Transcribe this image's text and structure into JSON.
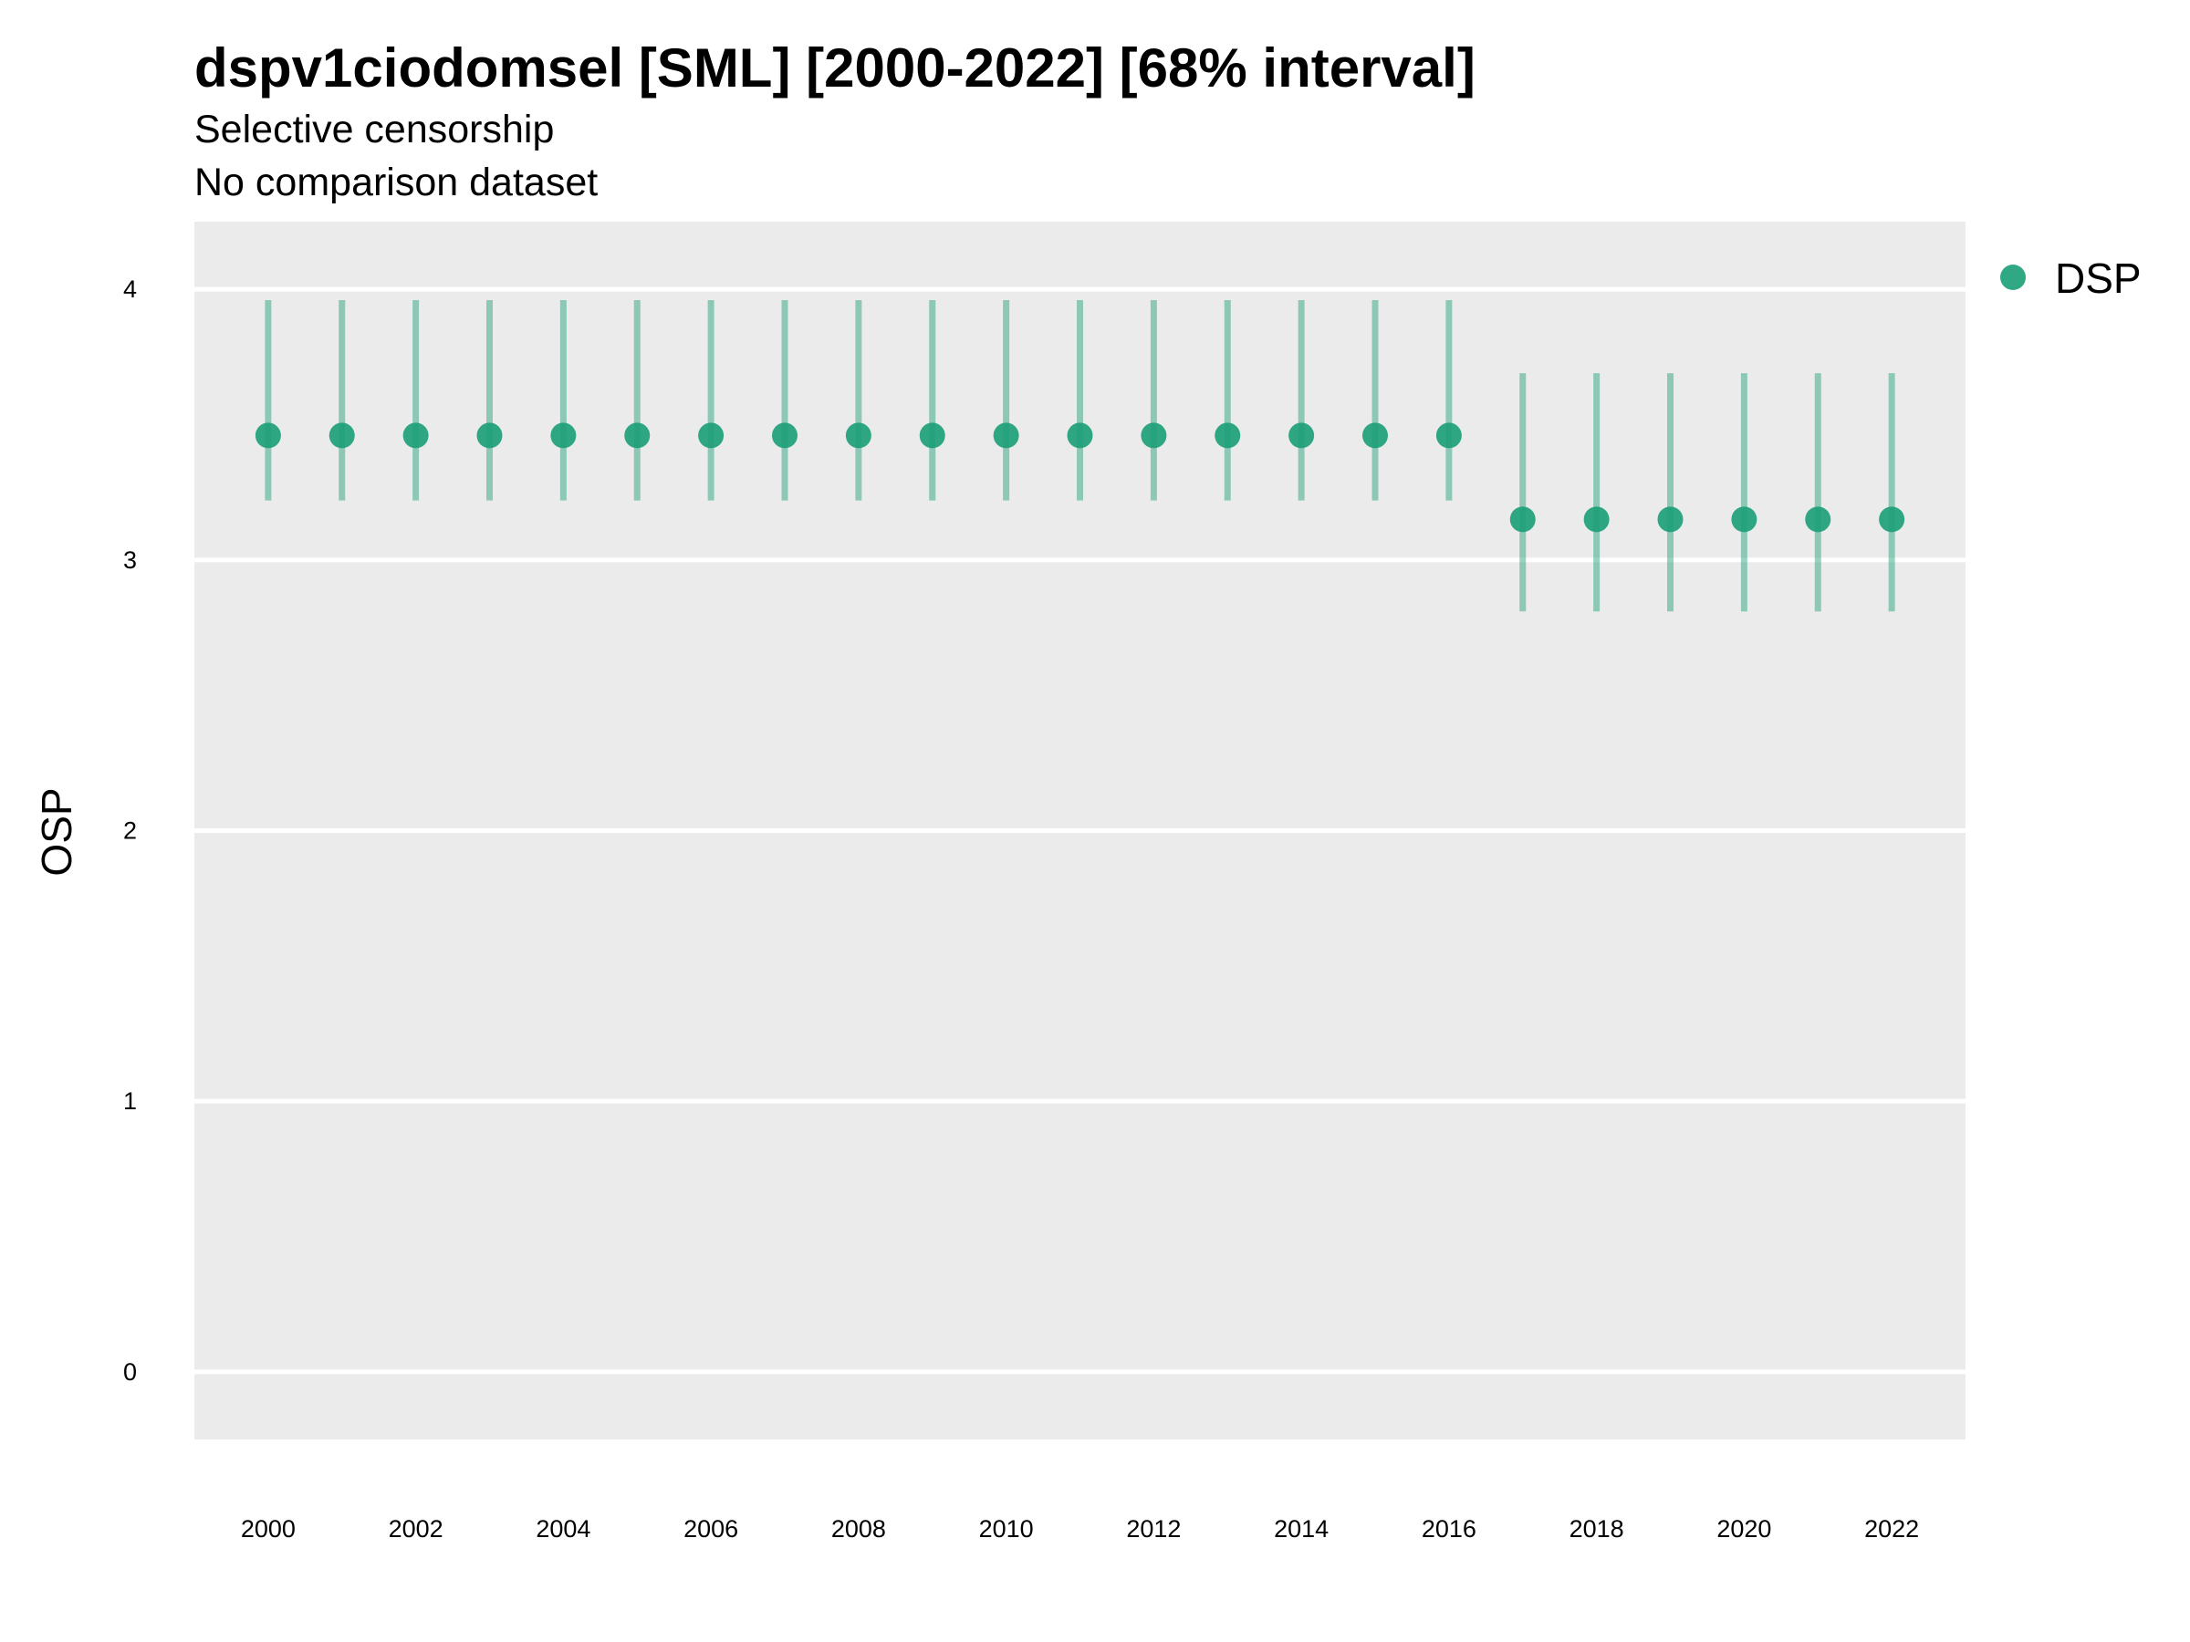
{
  "chart_data": {
    "type": "scatter",
    "title": "dspv1ciodomsel [SML] [2000-2022] [68% interval]",
    "subtitles": [
      "Selective censorship",
      "No comparison dataset"
    ],
    "xlabel": "",
    "ylabel": "OSP",
    "xlim": [
      1999,
      2023
    ],
    "ylim": [
      -0.25,
      4.25
    ],
    "x_ticks": [
      2000,
      2002,
      2004,
      2006,
      2008,
      2010,
      2012,
      2014,
      2016,
      2018,
      2020,
      2022
    ],
    "y_ticks": [
      0,
      1,
      2,
      3,
      4
    ],
    "grid": "horizontal",
    "legend_position": "right",
    "series": [
      {
        "name": "DSP",
        "color": "#1b9e77",
        "x": [
          2000,
          2001,
          2002,
          2003,
          2004,
          2005,
          2006,
          2007,
          2008,
          2009,
          2010,
          2011,
          2012,
          2013,
          2014,
          2015,
          2016,
          2017,
          2018,
          2019,
          2020,
          2021,
          2022
        ],
        "y": [
          3.46,
          3.46,
          3.46,
          3.46,
          3.46,
          3.46,
          3.46,
          3.46,
          3.46,
          3.46,
          3.46,
          3.46,
          3.46,
          3.46,
          3.46,
          3.46,
          3.46,
          3.15,
          3.15,
          3.15,
          3.15,
          3.15,
          3.15
        ],
        "lower": [
          3.22,
          3.22,
          3.22,
          3.22,
          3.22,
          3.22,
          3.22,
          3.22,
          3.22,
          3.22,
          3.22,
          3.22,
          3.22,
          3.22,
          3.22,
          3.22,
          3.22,
          2.81,
          2.81,
          2.81,
          2.81,
          2.81,
          2.81
        ],
        "upper": [
          3.96,
          3.96,
          3.96,
          3.96,
          3.96,
          3.96,
          3.96,
          3.96,
          3.96,
          3.96,
          3.96,
          3.96,
          3.96,
          3.96,
          3.96,
          3.96,
          3.96,
          3.69,
          3.69,
          3.69,
          3.69,
          3.69,
          3.69
        ]
      }
    ]
  },
  "colors": {
    "panel_background": "#ebebeb",
    "grid": "#ffffff",
    "series": "#1b9e77"
  }
}
